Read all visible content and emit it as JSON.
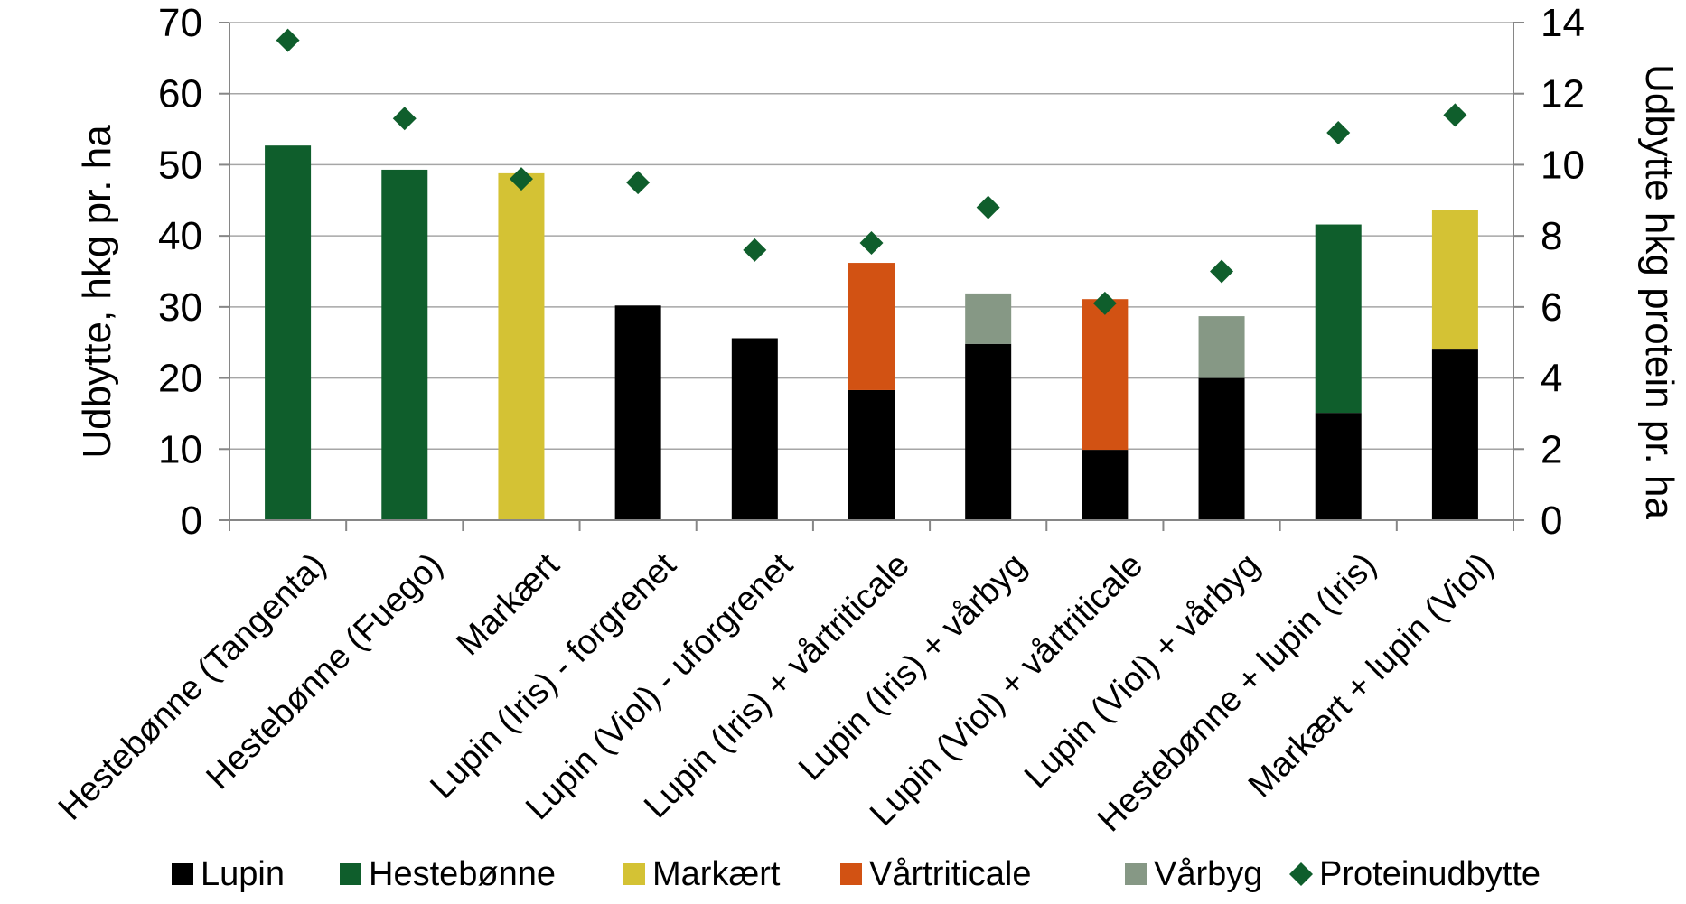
{
  "chart_data": {
    "type": "bar",
    "stacked": true,
    "categories": [
      "Hestebønne (Tangenta)",
      "Hestebønne (Fuego)",
      "Markært",
      "Lupin (Iris) - forgrenet",
      "Lupin (Viol) - uforgrenet",
      "Lupin (Iris) + vårtriticale",
      "Lupin (Iris) + vårbyg",
      "Lupin (Viol) + vårtriticale",
      "Lupin (Viol) + vårbyg",
      "Hestebønne + lupin (Iris)",
      "Markært + lupin (Viol)"
    ],
    "series": [
      {
        "name": "Lupin",
        "color": "#000000",
        "values": [
          0,
          0,
          0,
          30.2,
          25.6,
          18.3,
          24.8,
          9.9,
          20.0,
          15.1,
          24.0
        ]
      },
      {
        "name": "Hestebønne",
        "color": "#0f5e2c",
        "values": [
          52.7,
          49.3,
          0,
          0,
          0,
          0,
          0,
          0,
          0,
          26.5,
          0
        ]
      },
      {
        "name": "Markært",
        "color": "#d4c234",
        "values": [
          0,
          0,
          48.8,
          0,
          0,
          0,
          0,
          0,
          0,
          0,
          19.7
        ]
      },
      {
        "name": "Vårtriticale",
        "color": "#d25213",
        "values": [
          0,
          0,
          0,
          0,
          0,
          17.9,
          0,
          21.2,
          0,
          0,
          0
        ]
      },
      {
        "name": "Vårbyg",
        "color": "#869885",
        "values": [
          0,
          0,
          0,
          0,
          0,
          0,
          7.1,
          0,
          8.7,
          0,
          0
        ]
      }
    ],
    "secondary_series": {
      "name": "Proteinudbytte",
      "type": "scatter",
      "marker": "diamond",
      "color": "#0f5e2c",
      "axis": "right",
      "values": [
        13.5,
        11.3,
        9.6,
        9.5,
        7.6,
        7.8,
        8.8,
        6.1,
        7.0,
        10.9,
        11.4
      ]
    },
    "ylabel": "Udbytte, hkg pr. ha",
    "y2label": "Udbytte hkg protein pr. ha",
    "ylim": [
      0,
      70
    ],
    "y2lim": [
      0,
      14
    ],
    "yticks": [
      "0",
      "10",
      "20",
      "30",
      "40",
      "50",
      "60",
      "70"
    ],
    "y2ticks": [
      "0",
      "2",
      "4",
      "6",
      "8",
      "10",
      "12",
      "14"
    ],
    "grid": true,
    "legend_position": "bottom"
  }
}
